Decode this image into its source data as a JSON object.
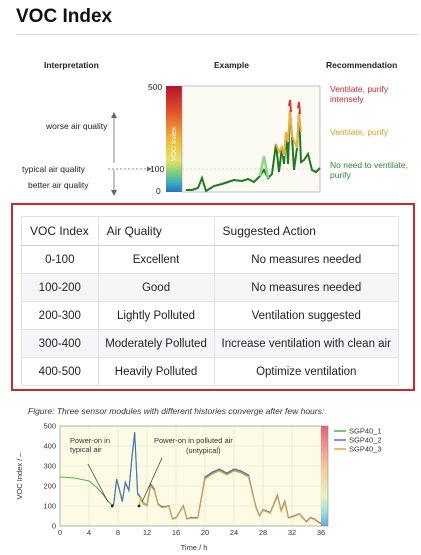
{
  "page": {
    "title": "VOC Index"
  },
  "example_figure": {
    "headers": {
      "interpretation": "Interpretation",
      "example": "Example",
      "recommendation": "Recommendation"
    },
    "interpretation_labels": {
      "worse": "worse air quality",
      "typical": "typical air quality",
      "better": "better air quality"
    },
    "axis_label": "VOC Index",
    "axis_ticks": [
      "500",
      "100",
      "0"
    ],
    "recommendations": [
      {
        "text": "Ventilate, purify intensely",
        "color": "#c8282d"
      },
      {
        "text": "Ventilate, purify",
        "color": "#e0a020"
      },
      {
        "text": "No need to ventilate, purify",
        "color": "#2e8b2e"
      }
    ]
  },
  "table": {
    "headers": [
      "VOC Index",
      "Air Quality",
      "Suggested Action"
    ],
    "rows": [
      {
        "index": "0-100",
        "quality": "Excellent",
        "action": "No measures needed"
      },
      {
        "index": "100-200",
        "quality": "Good",
        "action": "No measures needed"
      },
      {
        "index": "200-300",
        "quality": "Lightly Polluted",
        "action": "Ventilation suggested"
      },
      {
        "index": "300-400",
        "quality": "Moderately Polluted",
        "action": "Increase ventilation with clean air"
      },
      {
        "index": "400-500",
        "quality": "Heavily Polluted",
        "action": "Optimize ventilation"
      }
    ]
  },
  "convergence_figure": {
    "caption": "Figure: Three sensor modules with different histories converge after few hours:",
    "annotations": {
      "typical": "Power-on in typical air",
      "polluted": "Power-on in polluted air",
      "untypical": "(untypical)"
    }
  },
  "chart_data": {
    "type": "line",
    "title": "",
    "xlabel": "Time / h",
    "ylabel": "VOC Index / –",
    "xlim": [
      0,
      36
    ],
    "ylim": [
      0,
      500
    ],
    "x_ticks": [
      0,
      4,
      8,
      12,
      16,
      20,
      24,
      28,
      32,
      36
    ],
    "y_ticks": [
      0,
      100,
      200,
      300,
      400,
      500
    ],
    "grid": true,
    "legend": "top-right",
    "series": [
      {
        "name": "SGP40_1",
        "color": "#55b04a",
        "x": [
          0,
          2,
          4,
          5,
          6,
          6.5,
          7,
          7.4,
          7.8,
          8.2,
          8.6,
          9,
          9.5,
          9.9,
          10.3,
          10.7,
          11.1,
          11.5,
          12,
          12.5,
          13,
          13.5,
          14,
          14.5,
          15,
          15.5,
          16,
          17,
          17.5,
          18,
          19,
          20,
          21,
          22,
          23,
          24,
          25,
          26,
          27,
          27.5,
          28,
          29,
          30,
          30.5,
          31,
          31.5,
          32,
          33,
          34,
          34.5,
          35,
          36
        ],
        "y": [
          245,
          240,
          225,
          195,
          155,
          130,
          110,
          105,
          230,
          180,
          120,
          215,
          175,
          330,
          460,
          160,
          140,
          110,
          100,
          205,
          180,
          110,
          95,
          95,
          100,
          35,
          40,
          100,
          35,
          40,
          40,
          240,
          265,
          280,
          260,
          280,
          270,
          250,
          95,
          50,
          80,
          65,
          150,
          75,
          120,
          40,
          45,
          60,
          20,
          40,
          35,
          10
        ]
      },
      {
        "name": "SGP40_2",
        "color": "#4a72c4",
        "x": [
          7.2,
          7.4,
          7.8,
          8.2,
          8.6,
          9,
          9.5,
          9.9,
          10.3,
          10.7,
          11.1,
          11.5,
          12,
          12.5,
          13,
          13.5,
          14,
          14.5,
          15,
          15.5,
          16,
          17,
          17.5,
          18,
          19,
          20,
          21,
          22,
          23,
          24,
          25,
          26,
          27,
          27.5,
          28,
          29,
          30,
          30.5,
          31,
          31.5,
          32,
          33,
          34,
          34.5,
          35,
          36
        ],
        "y": [
          100,
          110,
          235,
          185,
          125,
          220,
          180,
          340,
          470,
          165,
          145,
          115,
          105,
          210,
          185,
          112,
          98,
          97,
          102,
          37,
          42,
          102,
          37,
          42,
          42,
          245,
          270,
          285,
          265,
          285,
          275,
          255,
          98,
          52,
          82,
          68,
          155,
          78,
          125,
          42,
          47,
          62,
          22,
          42,
          37,
          12
        ]
      },
      {
        "name": "SGP40_3",
        "color": "#e8a23c",
        "x": [
          10.9,
          11.1,
          11.5,
          12,
          12.5,
          13,
          13.5,
          14,
          14.5,
          15,
          15.5,
          16,
          17,
          17.5,
          18,
          19,
          20,
          21,
          22,
          23,
          24,
          25,
          26,
          27,
          27.5,
          28,
          29,
          30,
          30.5,
          31,
          31.5,
          32,
          33,
          34,
          34.5,
          35,
          36
        ],
        "y": [
          100,
          140,
          112,
          102,
          200,
          178,
          108,
          93,
          94,
          99,
          34,
          39,
          99,
          34,
          39,
          39,
          235,
          260,
          275,
          255,
          275,
          265,
          245,
          93,
          49,
          79,
          64,
          148,
          74,
          118,
          39,
          44,
          59,
          19,
          39,
          34,
          9
        ]
      }
    ]
  }
}
